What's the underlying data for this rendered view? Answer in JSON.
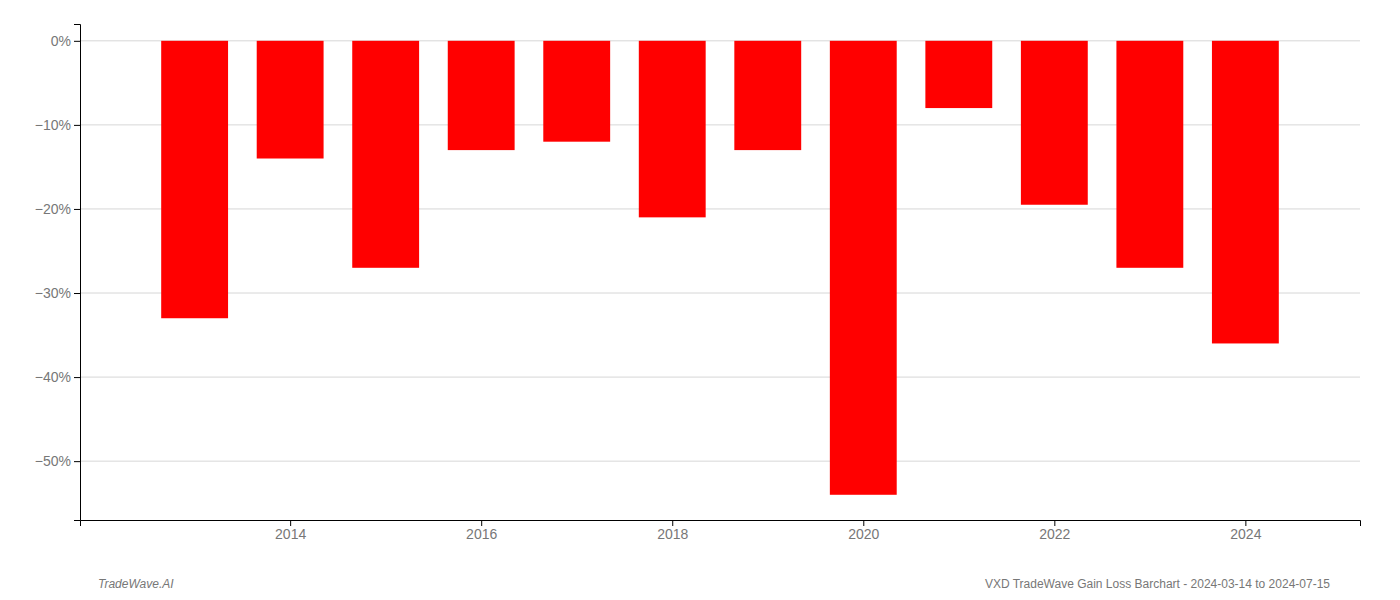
{
  "chart_data": {
    "type": "bar",
    "x": [
      2013,
      2014,
      2015,
      2016,
      2017,
      2018,
      2019,
      2020,
      2021,
      2022,
      2023,
      2024
    ],
    "values": [
      -33.0,
      -14.0,
      -27.0,
      -13.0,
      -12.0,
      -21.0,
      -13.0,
      -54.0,
      -8.0,
      -19.5,
      -27.0,
      -36.0
    ],
    "color": "#ff0000",
    "xlim": [
      2011.8,
      2025.2
    ],
    "xticks": [
      2014,
      2016,
      2018,
      2020,
      2022,
      2024
    ],
    "ylim": [
      -57,
      2
    ],
    "yticks": [
      {
        "value": 0,
        "label": "0%"
      },
      {
        "value": -10,
        "label": "−10%"
      },
      {
        "value": -20,
        "label": "−20%"
      },
      {
        "value": -30,
        "label": "−30%"
      },
      {
        "value": -40,
        "label": "−40%"
      },
      {
        "value": -50,
        "label": "−50%"
      }
    ],
    "grid": true,
    "annotations": [
      "TradeWave.AI",
      "VXD TradeWave Gain Loss Barchart - 2024-03-14 to 2024-07-15"
    ]
  }
}
